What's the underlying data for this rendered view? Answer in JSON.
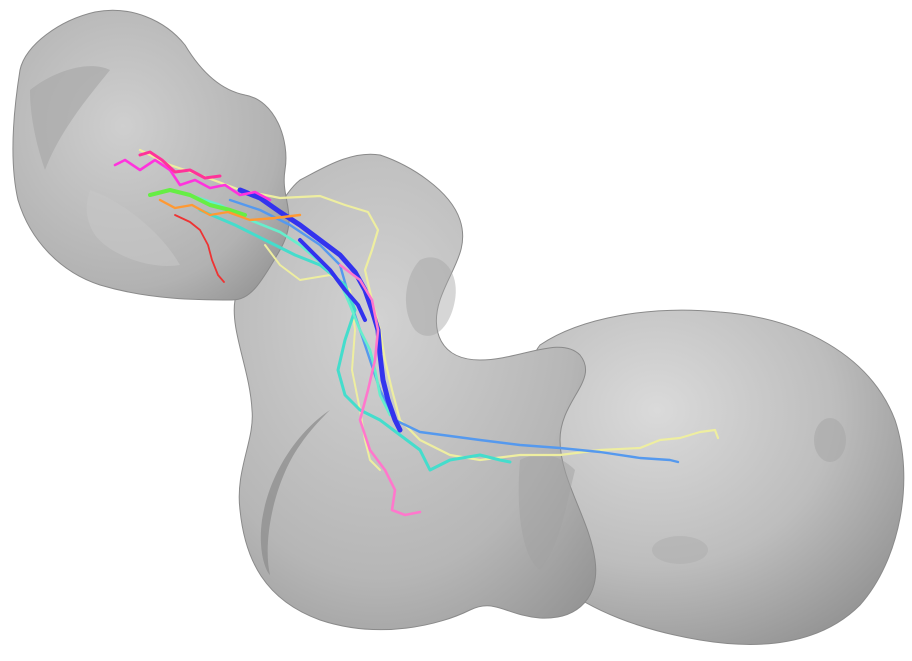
{
  "image": {
    "background_color": "#ffffff",
    "surface": {
      "fill_light": "#d6d6d6",
      "fill_mid": "#b4b4b4",
      "fill_dark": "#8a8a8a",
      "edge": "#7c7c7c"
    },
    "trajectories": [
      {
        "name": "magenta",
        "color": "#ff33dd"
      },
      {
        "name": "pink",
        "color": "#ff77cc"
      },
      {
        "name": "hot-pink",
        "color": "#ff3399"
      },
      {
        "name": "blue",
        "color": "#3333ee"
      },
      {
        "name": "light-blue",
        "color": "#5599ee"
      },
      {
        "name": "cyan",
        "color": "#44ddcc"
      },
      {
        "name": "aquamarine",
        "color": "#66eecc"
      },
      {
        "name": "pale-yellow",
        "color": "#eeeea0"
      },
      {
        "name": "lime",
        "color": "#66ee44"
      },
      {
        "name": "orange",
        "color": "#ff9933"
      },
      {
        "name": "red",
        "color": "#ee3333"
      }
    ]
  }
}
